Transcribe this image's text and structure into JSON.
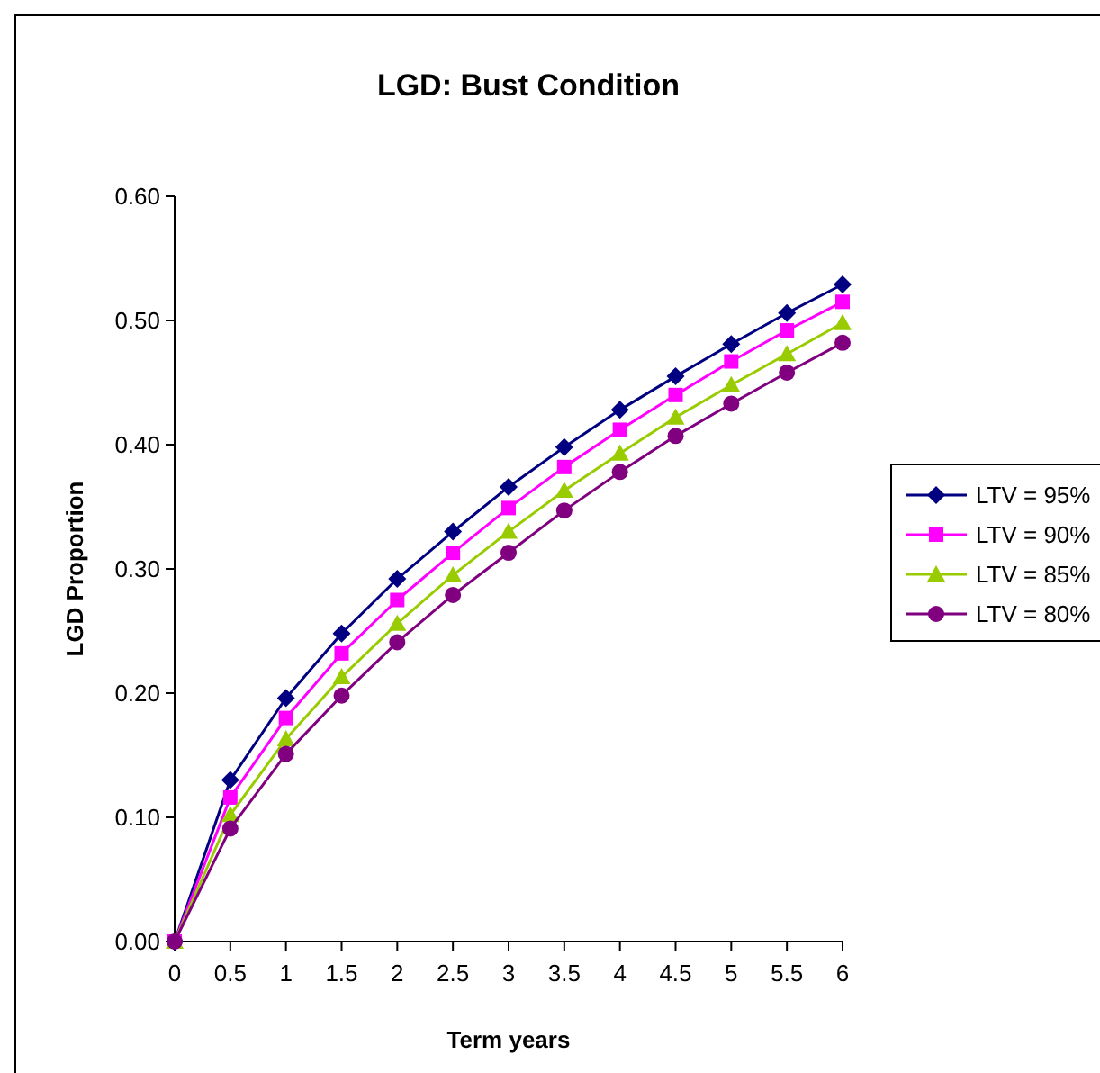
{
  "chart_data": {
    "type": "line",
    "title": "LGD: Bust Condition",
    "xlabel": "Term years",
    "ylabel": "LGD Proportion",
    "x": [
      0,
      0.5,
      1,
      1.5,
      2,
      2.5,
      3,
      3.5,
      4,
      4.5,
      5,
      5.5,
      6
    ],
    "xlim": [
      0,
      6
    ],
    "xticks": [
      0,
      0.5,
      1,
      1.5,
      2,
      2.5,
      3,
      3.5,
      4,
      4.5,
      5,
      5.5,
      6
    ],
    "ylim": [
      0,
      0.6
    ],
    "yticks": [
      {
        "value": 0,
        "label": "0.00"
      },
      {
        "value": 0.1,
        "label": "0.10"
      },
      {
        "value": 0.2,
        "label": "0.20"
      },
      {
        "value": 0.3,
        "label": "0.30"
      },
      {
        "value": 0.4,
        "label": "0.40"
      },
      {
        "value": 0.5,
        "label": "0.50"
      },
      {
        "value": 0.6,
        "label": "0.60"
      }
    ],
    "grid": false,
    "legend": "right",
    "line_style": "solid",
    "series": [
      {
        "name": "LTV = 95%",
        "color": "#000080",
        "marker": "diamond",
        "values": [
          0,
          0.13,
          0.196,
          0.248,
          0.292,
          0.33,
          0.366,
          0.398,
          0.428,
          0.455,
          0.481,
          0.506,
          0.529
        ]
      },
      {
        "name": "LTV = 90%",
        "color": "#ff00ff",
        "marker": "square",
        "values": [
          0,
          0.116,
          0.18,
          0.232,
          0.275,
          0.313,
          0.349,
          0.382,
          0.412,
          0.44,
          0.467,
          0.492,
          0.515
        ]
      },
      {
        "name": "LTV = 85%",
        "color": "#99cc00",
        "marker": "triangle",
        "values": [
          0,
          0.102,
          0.163,
          0.213,
          0.256,
          0.295,
          0.33,
          0.363,
          0.393,
          0.422,
          0.448,
          0.473,
          0.498
        ]
      },
      {
        "name": "LTV = 80%",
        "color": "#800080",
        "marker": "circle",
        "values": [
          0,
          0.091,
          0.151,
          0.198,
          0.241,
          0.279,
          0.313,
          0.347,
          0.378,
          0.407,
          0.433,
          0.458,
          0.482
        ]
      }
    ]
  }
}
